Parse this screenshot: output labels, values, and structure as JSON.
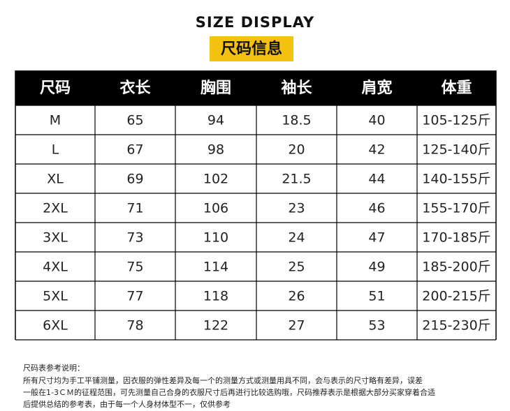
{
  "header": {
    "title": "SIZE DISPLAY",
    "badge": "尺码信息"
  },
  "table": {
    "columns": [
      "尺码",
      "衣长",
      "胸围",
      "袖长",
      "肩宽",
      "体重"
    ],
    "rows": [
      [
        "M",
        "65",
        "94",
        "18.5",
        "40",
        "105-125斤"
      ],
      [
        "L",
        "67",
        "98",
        "20",
        "42",
        "125-140斤"
      ],
      [
        "XL",
        "69",
        "102",
        "21.5",
        "44",
        "140-155斤"
      ],
      [
        "2XL",
        "71",
        "106",
        "23",
        "46",
        "155-170斤"
      ],
      [
        "3XL",
        "73",
        "110",
        "24",
        "47",
        "170-185斤"
      ],
      [
        "4XL",
        "75",
        "114",
        "25",
        "49",
        "185-200斤"
      ],
      [
        "5XL",
        "77",
        "118",
        "26",
        "51",
        "200-215斤"
      ],
      [
        "6XL",
        "78",
        "122",
        "27",
        "53",
        "215-230斤"
      ]
    ]
  },
  "notes": {
    "title": "尺码表参考说明：",
    "lines": [
      "所有尺寸均为手工平铺测量，因衣服的弹性差异及每一个的测量方式或测量用具不同，会与表示的尺寸略有差异，误差",
      "一般在1-3ＣＭ的征程范围，可先测量自己合身的衣服尺寸后再进行比较选购哦，尺码推荐表示是根据大部分买家穿着合适",
      "后提供总结的参考表，由于每一个人身材体型不一，仅供参考"
    ]
  }
}
